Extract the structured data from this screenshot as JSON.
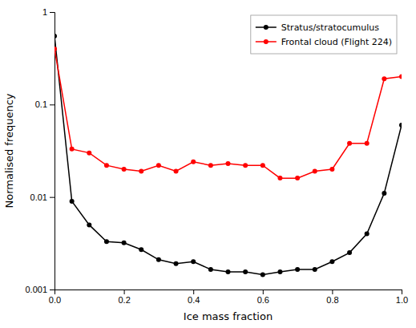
{
  "chart_data": {
    "type": "line",
    "x": [
      0.0,
      0.05,
      0.1,
      0.15,
      0.2,
      0.25,
      0.3,
      0.35,
      0.4,
      0.45,
      0.5,
      0.55,
      0.6,
      0.65,
      0.7,
      0.75,
      0.8,
      0.85,
      0.9,
      0.95,
      1.0
    ],
    "series": [
      {
        "name": "Stratus/stratocumulus",
        "color": "#000000",
        "marker": "circle",
        "line_style": "solid",
        "values": [
          0.55,
          0.009,
          0.005,
          0.0033,
          0.0032,
          0.0027,
          0.0021,
          0.0019,
          0.002,
          0.00165,
          0.00155,
          0.00155,
          0.00145,
          0.00155,
          0.00165,
          0.00165,
          0.002,
          0.0025,
          0.004,
          0.011,
          0.06
        ]
      },
      {
        "name": "Frontal cloud (Flight 224)",
        "color": "#ff0000",
        "marker": "circle",
        "line_style": "solid",
        "values": [
          0.4,
          0.033,
          0.03,
          0.022,
          0.02,
          0.019,
          0.022,
          0.019,
          0.024,
          0.022,
          0.023,
          0.022,
          0.022,
          0.016,
          0.016,
          0.019,
          0.02,
          0.038,
          0.038,
          0.19,
          0.2
        ]
      }
    ],
    "xlabel": "Ice mass fraction",
    "ylabel": "Normalised frequency",
    "xlim": [
      0.0,
      1.0
    ],
    "ylim": [
      0.001,
      1.0
    ],
    "xticks": [
      {
        "value": 0.0,
        "label": "0.0"
      },
      0.2,
      0.4,
      0.6,
      0.8,
      {
        "value": 1.0,
        "label": "1.0"
      }
    ],
    "yticks": [
      0.001,
      0.01,
      0.1,
      1
    ],
    "log": "y",
    "legend": "upper right"
  }
}
